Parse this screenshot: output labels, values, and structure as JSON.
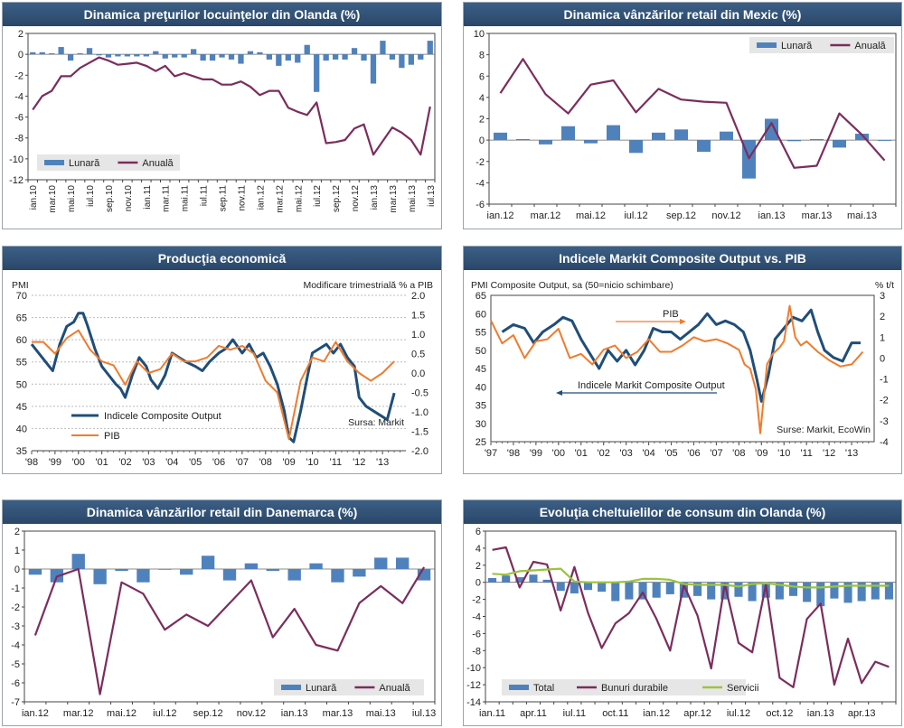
{
  "colors": {
    "bar": "#4f82bd",
    "line": "#7b2d5d",
    "orange": "#f07b2c",
    "navy": "#1f4e79",
    "green": "#9bc43c",
    "header": "#2f4f73"
  },
  "chart_data": [
    {
      "id": "c1",
      "type": "bar+line",
      "title": "Dinamica preţurilor locuinţelor din Olanda (%)",
      "ylim": [
        -12,
        2
      ],
      "yticks": [
        2,
        0,
        -2,
        -4,
        -6,
        -8,
        -10,
        -12
      ],
      "categories": [
        "ian.10",
        "feb.10",
        "mar.10",
        "apr.10",
        "mai.10",
        "iun.10",
        "iul.10",
        "aug.10",
        "sep.10",
        "oct.10",
        "nov.10",
        "dec.10",
        "ian.11",
        "feb.11",
        "mar.11",
        "apr.11",
        "mai.11",
        "iun.11",
        "iul.11",
        "aug.11",
        "sep.11",
        "oct.11",
        "nov.11",
        "dec.11",
        "ian.12",
        "feb.12",
        "mar.12",
        "apr.12",
        "mai.12",
        "iun.12",
        "iul.12",
        "aug.12",
        "sep.12",
        "oct.12",
        "nov.12",
        "dec.12",
        "ian.13",
        "feb.13",
        "mar.13",
        "apr.13",
        "mai.13",
        "iun.13",
        "iul.13"
      ],
      "xlabels": [
        "ian.10",
        "mar.10",
        "mai.10",
        "iul.10",
        "sep.10",
        "nov.10",
        "ian.11",
        "mar.11",
        "mai.11",
        "iul.11",
        "sep.11",
        "nov.11",
        "ian.12",
        "mar.12",
        "mai.12",
        "iul.12",
        "sep.12",
        "nov.12",
        "ian.13",
        "mar.13",
        "mai.13",
        "iul.13"
      ],
      "series": [
        {
          "name": "Lunară",
          "kind": "bar",
          "values": [
            0.2,
            0.2,
            0.1,
            0.7,
            -0.6,
            0.1,
            0.6,
            -0.1,
            -0.3,
            -0.2,
            -0.2,
            -0.2,
            -0.2,
            0.3,
            -0.4,
            -0.3,
            -0.3,
            0.5,
            -0.6,
            -0.6,
            -0.3,
            -0.5,
            -0.9,
            0.3,
            0.2,
            -0.5,
            -1.1,
            -0.6,
            -0.8,
            0.9,
            -3.6,
            -0.6,
            -0.5,
            -0.5,
            0.6,
            -0.6,
            -2.8,
            1.3,
            -0.5,
            -1.3,
            -1.0,
            -0.5,
            1.3
          ]
        },
        {
          "name": "Anuală",
          "kind": "line",
          "values": [
            -5.3,
            -4.0,
            -3.5,
            -2.1,
            -2.1,
            -1.3,
            -0.8,
            -0.3,
            -0.6,
            -1.0,
            -0.9,
            -0.8,
            -1.1,
            -1.6,
            -1.1,
            -2.1,
            -1.8,
            -2.1,
            -2.4,
            -2.4,
            -2.9,
            -2.9,
            -2.6,
            -3.1,
            -3.9,
            -3.5,
            -3.5,
            -5.1,
            -5.5,
            -5.8,
            -4.6,
            -8.5,
            -8.4,
            -8.2,
            -7.1,
            -6.7,
            -9.6,
            -8.3,
            -7.0,
            -7.5,
            -8.2,
            -9.6,
            -5.0
          ]
        }
      ],
      "legend": [
        "Lunară",
        "Anuală"
      ]
    },
    {
      "id": "c2",
      "type": "bar+line",
      "title": "Dinamica vânzărilor retail din Mexic (%)",
      "ylim": [
        -6,
        10
      ],
      "yticks": [
        10,
        8,
        6,
        4,
        2,
        0,
        -2,
        -4,
        -6
      ],
      "categories": [
        "ian.12",
        "feb.12",
        "mar.12",
        "apr.12",
        "mai.12",
        "iun.12",
        "iul.12",
        "aug.12",
        "sep.12",
        "oct.12",
        "nov.12",
        "dec.12",
        "ian.13",
        "feb.13",
        "mar.13",
        "apr.13",
        "mai.13",
        "iun.13"
      ],
      "xlabels": [
        "ian.12",
        "mar.12",
        "mai.12",
        "iul.12",
        "sep.12",
        "nov.12",
        "ian.13",
        "mar.13",
        "mai.13"
      ],
      "series": [
        {
          "name": "Lunară",
          "kind": "bar",
          "values": [
            0.7,
            0.1,
            -0.4,
            1.3,
            -0.3,
            1.4,
            -1.2,
            0.7,
            1.0,
            -1.1,
            0.8,
            -3.6,
            2.0,
            -0.1,
            0.1,
            -0.7,
            0.6,
            0.0
          ]
        },
        {
          "name": "Anuală",
          "kind": "line",
          "values": [
            4.4,
            7.6,
            4.3,
            2.5,
            5.2,
            5.6,
            2.6,
            4.8,
            3.8,
            3.6,
            3.5,
            -1.7,
            1.6,
            -2.6,
            -2.4,
            2.5,
            0.5,
            -1.9
          ]
        }
      ],
      "legend": [
        "Lunară",
        "Anuală"
      ]
    },
    {
      "id": "c3",
      "type": "line",
      "title": "Producţia economică",
      "left_axis_label": "PMI",
      "right_axis_label": "Modificare trimestrială % a PIB",
      "ylim_left": [
        35,
        70
      ],
      "yticks_left": [
        70,
        65,
        60,
        55,
        50,
        45,
        40,
        35
      ],
      "ylim_right": [
        -2.0,
        2.0
      ],
      "yticks_right": [
        "2.0",
        "1.5",
        "1.0",
        "0.5",
        "0.0",
        "-0.5",
        "-1.0",
        "-1.5",
        "-2.0"
      ],
      "xlim": [
        1998,
        2014
      ],
      "xlabels": [
        "'98",
        "'99",
        "'00",
        "'01",
        "'02",
        "'03",
        "'04",
        "'05",
        "'06",
        "'07",
        "'08",
        "'09",
        "'10",
        "'11",
        "'12",
        "'13"
      ],
      "source": "Sursa: Markit",
      "series": [
        {
          "name": "Indicele Composite Output",
          "axis": "left",
          "x": [
            1998.0,
            1998.3,
            1998.6,
            1998.9,
            1999.2,
            1999.5,
            1999.8,
            2000.0,
            2000.2,
            2000.4,
            2000.7,
            2001.0,
            2001.3,
            2001.6,
            2001.8,
            2002.0,
            2002.3,
            2002.6,
            2002.9,
            2003.1,
            2003.4,
            2003.7,
            2004.0,
            2004.3,
            2004.6,
            2005.0,
            2005.3,
            2005.6,
            2006.0,
            2006.3,
            2006.6,
            2007.0,
            2007.3,
            2007.6,
            2007.9,
            2008.2,
            2008.5,
            2008.8,
            2009.0,
            2009.2,
            2009.5,
            2009.8,
            2010.0,
            2010.3,
            2010.6,
            2010.9,
            2011.2,
            2011.5,
            2011.8,
            2012.0,
            2012.3,
            2012.6,
            2012.9,
            2013.2,
            2013.5
          ],
          "values": [
            59,
            57,
            55,
            53,
            59,
            63,
            64,
            66,
            66,
            63,
            58,
            54,
            52,
            50,
            49,
            47,
            52,
            56,
            54,
            51,
            49,
            52,
            57,
            56,
            55,
            54,
            53,
            55,
            57,
            58,
            60,
            57,
            59,
            56,
            57,
            54,
            50,
            44,
            38,
            37,
            44,
            52,
            57,
            58,
            59,
            57,
            59,
            56,
            54,
            47,
            45,
            44,
            43,
            42,
            48
          ]
        },
        {
          "name": "PIB",
          "axis": "right",
          "x": [
            1998.0,
            1998.5,
            1999.0,
            1999.5,
            2000.0,
            2000.5,
            2001.0,
            2001.5,
            2002.0,
            2002.5,
            2003.0,
            2003.5,
            2004.0,
            2004.5,
            2005.0,
            2005.5,
            2006.0,
            2006.5,
            2007.0,
            2007.5,
            2008.0,
            2008.5,
            2009.0,
            2009.5,
            2010.0,
            2010.5,
            2011.0,
            2011.5,
            2012.0,
            2012.5,
            2013.0,
            2013.5
          ],
          "values": [
            0.8,
            0.8,
            0.5,
            0.9,
            1.1,
            0.6,
            0.3,
            0.2,
            -0.3,
            0.3,
            0.0,
            0.1,
            0.5,
            0.3,
            0.3,
            0.4,
            0.7,
            0.6,
            0.7,
            0.5,
            -0.2,
            -0.5,
            -1.7,
            -0.2,
            0.4,
            0.3,
            0.8,
            0.3,
            0.0,
            -0.2,
            0.0,
            0.3
          ]
        }
      ],
      "legend": [
        "Indicele Composite Output",
        "PIB"
      ]
    },
    {
      "id": "c4",
      "type": "line",
      "title": "Indicele Markit Composite Output vs. PIB",
      "left_axis_label": "PMI Composite Output, sa (50=nicio schimbare)",
      "right_axis_label": "% t/t",
      "ylim_left": [
        25,
        65
      ],
      "yticks_left": [
        65,
        60,
        55,
        50,
        45,
        40,
        35,
        30,
        25
      ],
      "ylim_right": [
        -4,
        3
      ],
      "yticks_right": [
        "3",
        "2",
        "1",
        "0",
        "-1",
        "-2",
        "-3",
        "-4"
      ],
      "xlim": [
        1997,
        2014
      ],
      "xlabels": [
        "'97",
        "'98",
        "'99",
        "'00",
        "'01",
        "'02",
        "'03",
        "'04",
        "'05",
        "'06",
        "'07",
        "'08",
        "'09",
        "'10",
        "'11",
        "'12",
        "'13"
      ],
      "source": "Surse: Markit, EcoWin",
      "annotations": {
        "pib": "PIB",
        "markit": "Indicele Markit Composite Output"
      },
      "series": [
        {
          "name": "Indicele Markit Composite Output",
          "axis": "left",
          "x": [
            1997.5,
            1998.0,
            1998.5,
            1998.9,
            1999.3,
            1999.8,
            2000.2,
            2000.6,
            2001.0,
            2001.4,
            2001.8,
            2002.2,
            2002.6,
            2003.0,
            2003.4,
            2003.8,
            2004.2,
            2004.6,
            2005.0,
            2005.4,
            2005.8,
            2006.2,
            2006.6,
            2007.0,
            2007.4,
            2007.8,
            2008.2,
            2008.5,
            2008.8,
            2009.0,
            2009.3,
            2009.6,
            2010.0,
            2010.4,
            2010.8,
            2011.2,
            2011.5,
            2011.8,
            2012.2,
            2012.6,
            2013.0,
            2013.4
          ],
          "values": [
            55,
            57,
            56,
            52,
            55,
            57,
            59,
            58,
            53,
            49,
            45,
            50,
            47,
            50,
            46,
            50,
            56,
            55,
            55,
            53,
            55,
            57,
            60,
            57,
            58,
            57,
            55,
            50,
            42,
            36,
            43,
            53,
            56,
            59,
            58,
            61,
            55,
            50,
            48,
            47,
            52,
            52
          ]
        },
        {
          "name": "PIB",
          "axis": "right",
          "x": [
            1997.0,
            1997.5,
            1998.0,
            1998.5,
            1999.0,
            1999.5,
            2000.0,
            2000.5,
            2001.0,
            2001.5,
            2002.0,
            2002.5,
            2003.0,
            2003.5,
            2004.0,
            2004.5,
            2005.0,
            2005.5,
            2006.0,
            2006.5,
            2007.0,
            2007.5,
            2008.0,
            2008.25,
            2008.5,
            2008.75,
            2008.95,
            2009.25,
            2009.5,
            2009.8,
            2010.0,
            2010.25,
            2010.5,
            2010.75,
            2011.0,
            2011.5,
            2012.0,
            2012.5,
            2013.0,
            2013.5
          ],
          "values": [
            1.8,
            0.7,
            1.1,
            0,
            0.8,
            0.9,
            1.4,
            0,
            0.2,
            -0.3,
            0.4,
            0.6,
            0,
            0.3,
            0.9,
            0.3,
            0.3,
            0.6,
            1.0,
            0.8,
            0.9,
            0.7,
            0.4,
            -0.3,
            -0.5,
            -1.5,
            -3.6,
            -0.3,
            0.2,
            0.5,
            0.8,
            2.5,
            1.0,
            0.6,
            0.8,
            0.3,
            -0.1,
            -0.4,
            -0.3,
            0.3
          ]
        }
      ]
    },
    {
      "id": "c5",
      "type": "bar+line",
      "title": "Dinamica vânzărilor retail din Danemarca (%)",
      "ylim": [
        -7,
        2
      ],
      "yticks": [
        2,
        1,
        0,
        -1,
        -2,
        -3,
        -4,
        -5,
        -6,
        -7
      ],
      "categories": [
        "ian.12",
        "feb.12",
        "mar.12",
        "apr.12",
        "mai.12",
        "iun.12",
        "iul.12",
        "aug.12",
        "sep.12",
        "oct.12",
        "nov.12",
        "dec.12",
        "ian.13",
        "feb.13",
        "mar.13",
        "apr.13",
        "mai.13",
        "iun.13",
        "iul.13"
      ],
      "xlabels": [
        "ian.12",
        "mar.12",
        "mai.12",
        "iul.12",
        "sep.12",
        "nov.12",
        "ian.13",
        "mar.13",
        "mai.13",
        "iul.13"
      ],
      "series": [
        {
          "name": "Lunară",
          "kind": "bar",
          "values": [
            -0.3,
            -0.7,
            0.8,
            -0.8,
            -0.1,
            -0.7,
            0.0,
            -0.3,
            0.7,
            -0.6,
            0.3,
            -0.1,
            -0.6,
            0.3,
            -0.7,
            -0.4,
            0.6,
            0.6,
            -0.6
          ]
        },
        {
          "name": "Anuală",
          "kind": "line",
          "values": [
            -3.5,
            -0.4,
            0.0,
            -6.6,
            -0.7,
            -1.3,
            -3.2,
            -2.4,
            -3.0,
            -1.8,
            -0.6,
            -3.6,
            -2.1,
            -4.0,
            -4.3,
            -1.8,
            -0.9,
            -1.8,
            0.1
          ]
        }
      ],
      "legend": [
        "Lunară",
        "Anuală"
      ]
    },
    {
      "id": "c6",
      "type": "bar+line",
      "title": "Evoluţia cheltuielilor de consum din Olanda (%)",
      "ylim": [
        -14,
        6
      ],
      "yticks": [
        6,
        4,
        2,
        0,
        -2,
        -4,
        -6,
        -8,
        -10,
        -12,
        -14
      ],
      "categories": [
        "ian.11",
        "feb.11",
        "mar.11",
        "apr.11",
        "mai.11",
        "iun.11",
        "iul.11",
        "aug.11",
        "sep.11",
        "oct.11",
        "nov.11",
        "dec.11",
        "ian.12",
        "feb.12",
        "mar.12",
        "apr.12",
        "mai.12",
        "iun.12",
        "iul.12",
        "aug.12",
        "sep.12",
        "oct.12",
        "nov.12",
        "dec.12",
        "ian.13",
        "feb.13",
        "mar.13",
        "apr.13",
        "mai.13",
        "iun.13"
      ],
      "xlabels": [
        "ian.11",
        "apr.11",
        "iul.11",
        "oct.11",
        "ian.12",
        "apr.12",
        "iul.12",
        "oct.12",
        "ian.13",
        "apr.13"
      ],
      "series": [
        {
          "name": "Total",
          "kind": "bar",
          "values": [
            0.5,
            0.8,
            0.6,
            0.9,
            0.3,
            -1.0,
            -1.3,
            -0.9,
            -1.1,
            -2.2,
            -2.0,
            -2.0,
            -1.8,
            -1.4,
            -1.8,
            -1.6,
            -2.0,
            -2.0,
            -1.7,
            -2.2,
            -1.8,
            -2.0,
            -1.6,
            -2.3,
            -2.8,
            -1.9,
            -2.4,
            -2.2,
            -2.0,
            -2.0
          ]
        },
        {
          "name": "Bunuri durabile",
          "kind": "line",
          "values": [
            3.8,
            4.1,
            -0.6,
            2.4,
            2.1,
            -3.3,
            1.8,
            -3.6,
            -7.7,
            -4.8,
            -3.6,
            -1.2,
            -4.3,
            -8.0,
            -0.3,
            -3.9,
            -10.1,
            -0.2,
            -7.1,
            -8.2,
            -0.3,
            -11.2,
            -12.3,
            -4.3,
            -2.5,
            -12.0,
            -6.6,
            -11.8,
            -9.3,
            -9.9
          ]
        },
        {
          "name": "Servicii",
          "kind": "line",
          "values": [
            1.0,
            0.9,
            1.3,
            1.4,
            1.5,
            1.6,
            0.1,
            0.0,
            0.0,
            0.0,
            0.1,
            0.4,
            0.4,
            0.3,
            -0.2,
            -0.3,
            -0.3,
            -0.3,
            -0.5,
            -0.2,
            -0.1,
            -0.3,
            -0.5,
            -0.6,
            -0.6,
            -0.5,
            -0.4,
            -0.4,
            -0.4,
            -0.4
          ]
        }
      ],
      "legend": [
        "Total",
        "Bunuri durabile",
        "Servicii"
      ]
    }
  ]
}
